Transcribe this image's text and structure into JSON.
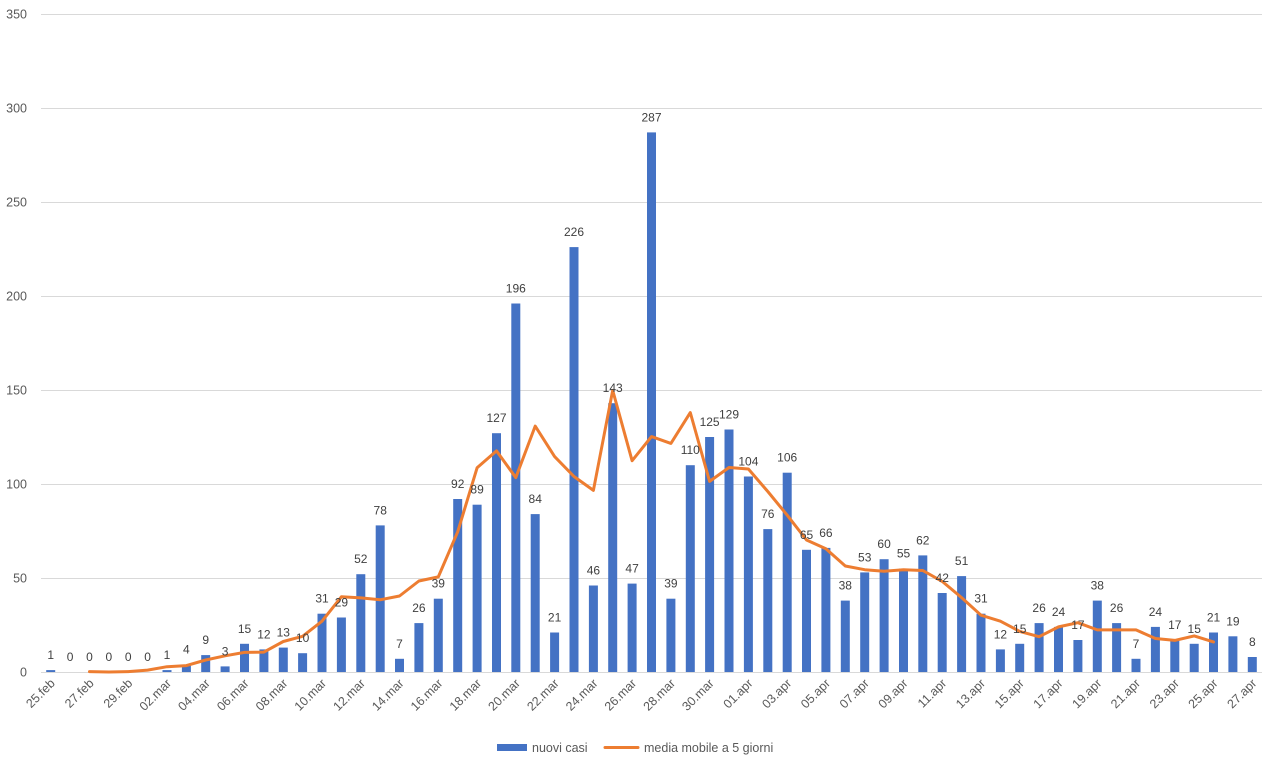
{
  "chart_data": {
    "type": "bar",
    "categories": [
      "25.feb",
      "",
      "27.feb",
      "",
      "29.feb",
      "",
      "02.mar",
      "",
      "04.mar",
      "",
      "06.mar",
      "",
      "08.mar",
      "",
      "10.mar",
      "",
      "12.mar",
      "",
      "14.mar",
      "",
      "16.mar",
      "",
      "18.mar",
      "",
      "20.mar",
      "",
      "22.mar",
      "",
      "24.mar",
      "",
      "26.mar",
      "",
      "28.mar",
      "",
      "30.mar",
      "",
      "01.apr",
      "",
      "03.apr",
      "",
      "05.apr",
      "",
      "07.apr",
      "",
      "09.apr",
      "",
      "11.apr",
      "",
      "13.apr",
      "",
      "15.apr",
      "",
      "17.apr",
      "",
      "19.apr",
      "",
      "21.apr",
      "",
      "23.apr",
      "",
      "25.apr",
      "",
      "27.apr"
    ],
    "series": [
      {
        "name": "nuovi casi",
        "type": "bar",
        "color": "#4472C4",
        "values": [
          1,
          0,
          0,
          0,
          0,
          0,
          1,
          4,
          9,
          3,
          15,
          12,
          13,
          10,
          31,
          29,
          52,
          78,
          7,
          26,
          39,
          92,
          89,
          127,
          196,
          84,
          21,
          226,
          46,
          143,
          47,
          287,
          39,
          110,
          125,
          129,
          104,
          76,
          106,
          65,
          66,
          38,
          53,
          60,
          55,
          62,
          42,
          51,
          31,
          12,
          15,
          26,
          24,
          17,
          38,
          26,
          7,
          24,
          17,
          15,
          21,
          19,
          8
        ]
      },
      {
        "name": "media mobile a 5 giorni",
        "type": "line",
        "color": "#ED7D31",
        "values": [
          null,
          null,
          0.2,
          0,
          0.2,
          1,
          2.8,
          3.4,
          6.4,
          8.6,
          10.4,
          10.6,
          16.2,
          19,
          27,
          40,
          39.4,
          38.4,
          40.4,
          48.4,
          50.6,
          74.6,
          108.6,
          117.6,
          103.4,
          130.8,
          114.6,
          104,
          96.6,
          149.8,
          112.4,
          125.2,
          121.6,
          138,
          101.4,
          108.8,
          108,
          96,
          83.4,
          70.2,
          65.6,
          56.4,
          54.4,
          53.6,
          54.4,
          54,
          48.2,
          39.6,
          30.2,
          27,
          21.6,
          18.8,
          24,
          26.2,
          22.4,
          22.4,
          22.4,
          17.8,
          16.8,
          19.2,
          16,
          null,
          null
        ]
      }
    ],
    "ylim": [
      0,
      350
    ],
    "yticks": [
      0,
      50,
      100,
      150,
      200,
      250,
      300,
      350
    ],
    "grid": "horizontal",
    "legend": "bottom",
    "data_labels": true
  }
}
